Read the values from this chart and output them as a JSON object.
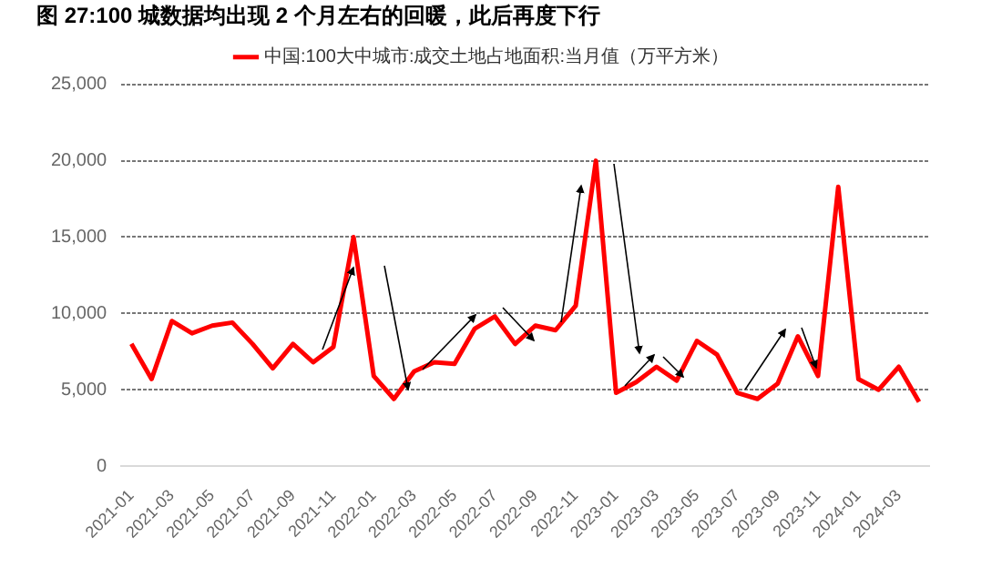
{
  "chart_data": {
    "type": "line",
    "title": "图 27:100 城数据均出现 2 个月左右的回暖，此后再度下行",
    "categories": [
      "2021-01",
      null,
      "2021-03",
      null,
      "2021-05",
      null,
      "2021-07",
      null,
      "2021-09",
      null,
      "2021-11",
      null,
      "2022-01",
      null,
      "2022-03",
      null,
      "2022-05",
      null,
      "2022-07",
      null,
      "2022-09",
      null,
      "2022-11",
      null,
      "2023-01",
      null,
      "2023-03",
      null,
      "2023-05",
      null,
      "2023-07",
      null,
      "2023-09",
      null,
      "2023-11",
      null,
      "2024-01",
      null,
      "2024-03",
      null
    ],
    "series": [
      {
        "name": "中国:100大中城市:成交土地占地面积:当月值（万平方米）",
        "color": "#ff0000",
        "values": [
          8000,
          5700,
          9500,
          8700,
          9200,
          9400,
          8000,
          6400,
          8000,
          6800,
          7800,
          15000,
          5900,
          4400,
          6200,
          6800,
          6700,
          9000,
          9800,
          8000,
          9200,
          8900,
          10500,
          20000,
          4800,
          5500,
          6500,
          5600,
          8200,
          7300,
          4800,
          4400,
          5400,
          8500,
          5900,
          18300,
          5700,
          5000,
          6500,
          4200
        ]
      }
    ],
    "ylim": [
      0,
      25000
    ],
    "yticks": [
      {
        "value": 0,
        "label": "0"
      },
      {
        "value": 5000,
        "label": "5,000"
      },
      {
        "value": 10000,
        "label": "10,000"
      },
      {
        "value": 15000,
        "label": "15,000"
      },
      {
        "value": 20000,
        "label": "20,000"
      },
      {
        "value": 25000,
        "label": "25,000"
      }
    ],
    "grid": "y",
    "legend": "top",
    "marker": "none",
    "line_style": "solid"
  }
}
